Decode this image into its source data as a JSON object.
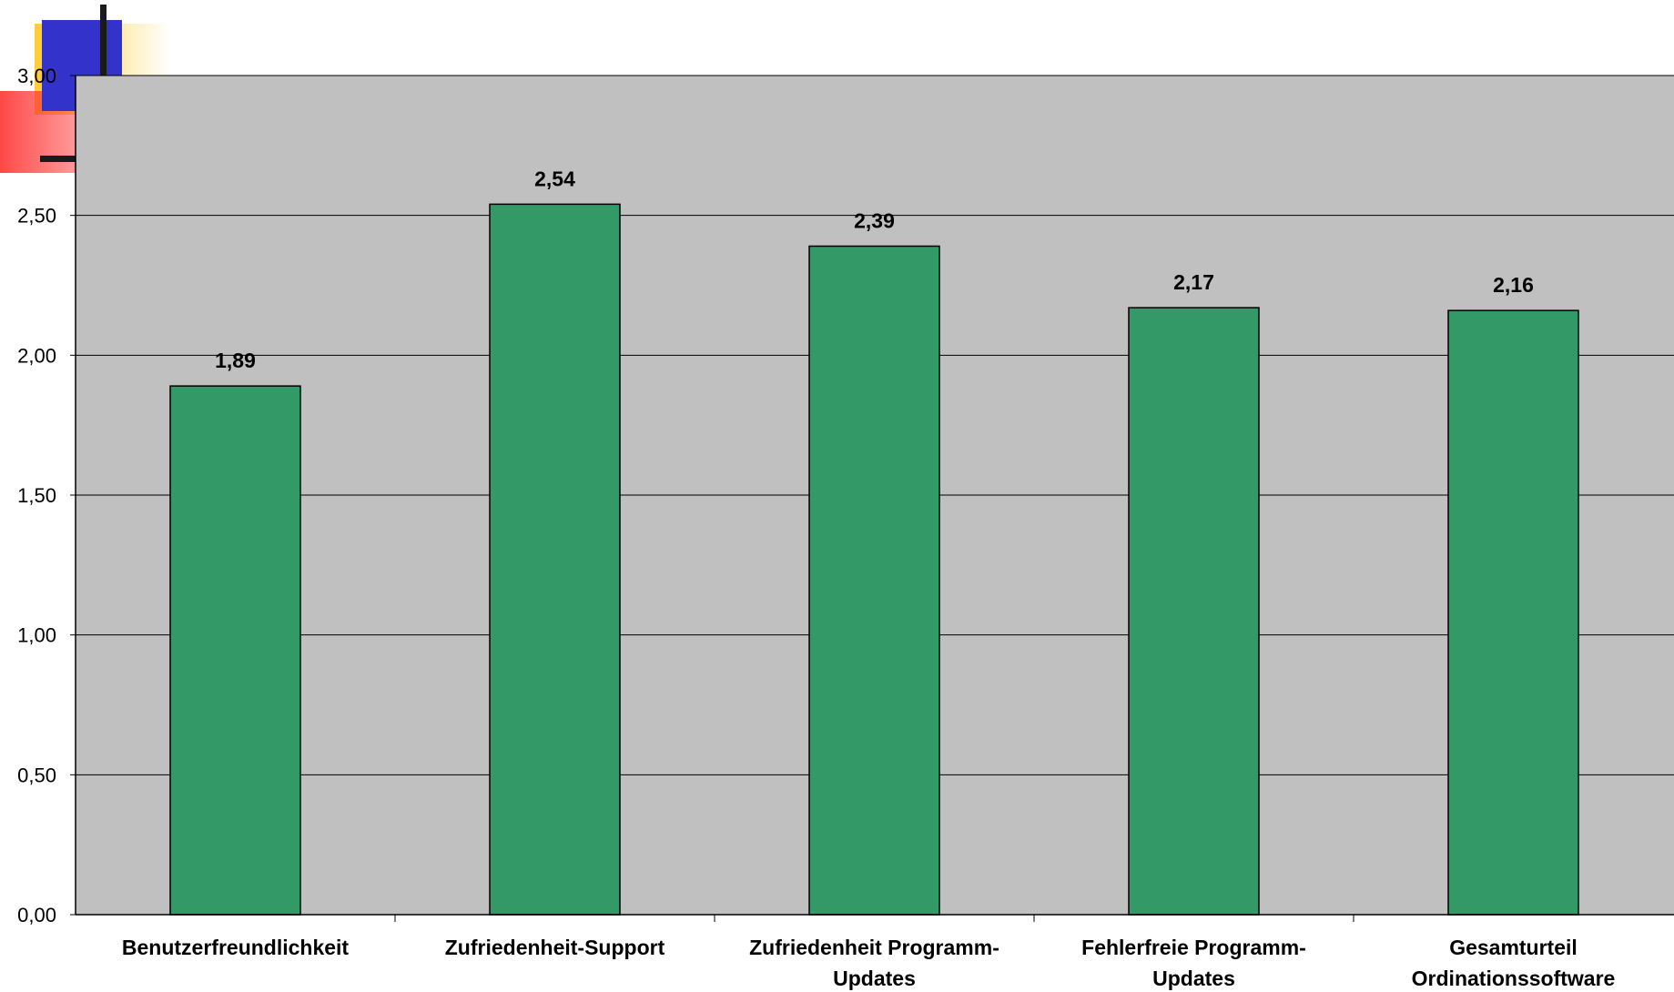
{
  "chart_data": {
    "type": "bar",
    "categories": [
      [
        "Benutzerfreundlichkeit"
      ],
      [
        "Zufriedenheit-Support"
      ],
      [
        "Zufriedenheit Programm-",
        "Updates"
      ],
      [
        "Fehlerfreie Programm-",
        "Updates"
      ],
      [
        "Gesamturteil",
        "Ordinationssoftware"
      ]
    ],
    "values": [
      1.89,
      2.54,
      2.39,
      2.17,
      2.16
    ],
    "value_labels": [
      "1,89",
      "2,54",
      "2,39",
      "2,17",
      "2,16"
    ],
    "y_ticks": [
      0,
      0.5,
      1,
      1.5,
      2,
      2.5,
      3
    ],
    "y_tick_labels": [
      "0,00",
      "0,50",
      "1,00",
      "1,50",
      "2,00",
      "2,50",
      "3,00"
    ],
    "ylim": [
      0,
      3
    ],
    "title": "",
    "xlabel": "",
    "ylabel": "",
    "grid": true,
    "legend": "none",
    "colors": {
      "plot_background": "#c0c0c0",
      "bar_fill": "#339966",
      "bar_stroke": "#000000",
      "gridline": "#000000"
    }
  },
  "decoration": {
    "colors": {
      "blue": "#3333cc",
      "yellow": "#ffcc33",
      "red": "#ff3333",
      "dark": "#1a1a1a"
    }
  }
}
